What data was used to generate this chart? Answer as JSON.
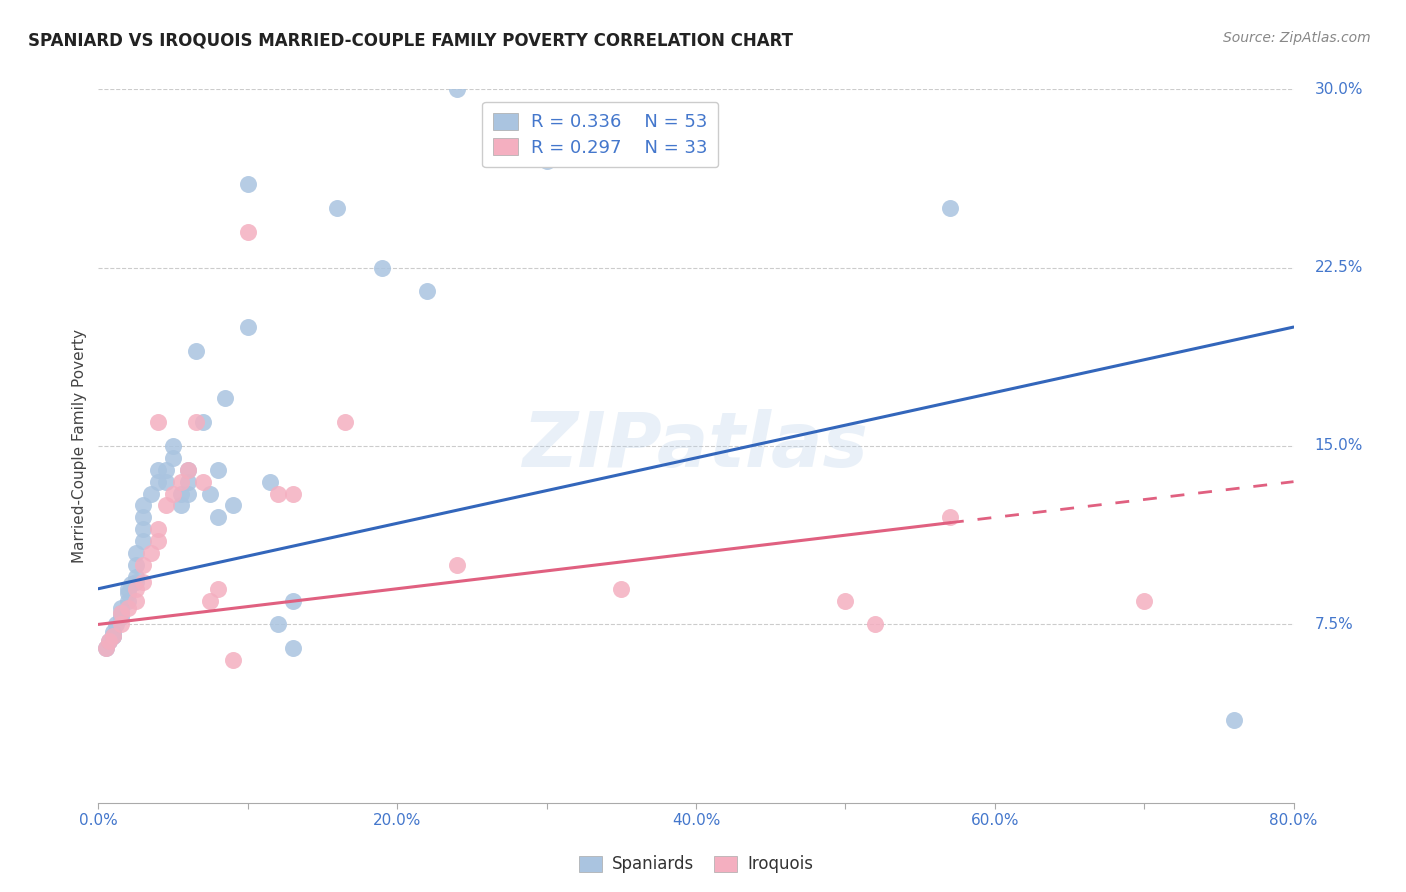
{
  "title": "SPANIARD VS IROQUOIS MARRIED-COUPLE FAMILY POVERTY CORRELATION CHART",
  "source": "Source: ZipAtlas.com",
  "ylabel_label": "Married-Couple Family Poverty",
  "xlim": [
    0.0,
    0.8
  ],
  "ylim": [
    0.0,
    0.3
  ],
  "yticks": [
    0.075,
    0.15,
    0.225,
    0.3
  ],
  "ytick_labels": [
    "7.5%",
    "15.0%",
    "22.5%",
    "30.0%"
  ],
  "xticks": [
    0.0,
    0.1,
    0.2,
    0.3,
    0.4,
    0.5,
    0.6,
    0.7,
    0.8
  ],
  "xtick_labels": [
    "0.0%",
    "",
    "20.0%",
    "",
    "40.0%",
    "",
    "60.0%",
    "",
    "80.0%"
  ],
  "watermark": "ZIPatlas",
  "spaniards_color": "#aac4e0",
  "iroquois_color": "#f4afc0",
  "trend_blue_color": "#3366bb",
  "trend_pink_color": "#e06080",
  "tick_color": "#4477cc",
  "grid_color": "#cccccc",
  "background_color": "#ffffff",
  "spaniards_x": [
    0.005,
    0.007,
    0.01,
    0.01,
    0.01,
    0.012,
    0.015,
    0.015,
    0.015,
    0.02,
    0.02,
    0.02,
    0.022,
    0.025,
    0.025,
    0.025,
    0.025,
    0.03,
    0.03,
    0.03,
    0.03,
    0.035,
    0.04,
    0.04,
    0.045,
    0.045,
    0.05,
    0.05,
    0.055,
    0.055,
    0.06,
    0.06,
    0.06,
    0.065,
    0.07,
    0.075,
    0.08,
    0.08,
    0.085,
    0.09,
    0.1,
    0.1,
    0.115,
    0.12,
    0.13,
    0.13,
    0.16,
    0.19,
    0.22,
    0.24,
    0.3,
    0.57,
    0.76
  ],
  "spaniards_y": [
    0.065,
    0.068,
    0.07,
    0.07,
    0.072,
    0.075,
    0.078,
    0.08,
    0.082,
    0.085,
    0.088,
    0.09,
    0.092,
    0.093,
    0.095,
    0.1,
    0.105,
    0.11,
    0.115,
    0.12,
    0.125,
    0.13,
    0.135,
    0.14,
    0.135,
    0.14,
    0.145,
    0.15,
    0.125,
    0.13,
    0.13,
    0.135,
    0.14,
    0.19,
    0.16,
    0.13,
    0.12,
    0.14,
    0.17,
    0.125,
    0.2,
    0.26,
    0.135,
    0.075,
    0.065,
    0.085,
    0.25,
    0.225,
    0.215,
    0.3,
    0.27,
    0.25,
    0.035
  ],
  "iroquois_x": [
    0.005,
    0.007,
    0.01,
    0.015,
    0.015,
    0.02,
    0.025,
    0.025,
    0.03,
    0.03,
    0.035,
    0.04,
    0.04,
    0.04,
    0.045,
    0.05,
    0.055,
    0.06,
    0.065,
    0.07,
    0.075,
    0.08,
    0.09,
    0.1,
    0.12,
    0.13,
    0.165,
    0.24,
    0.35,
    0.5,
    0.52,
    0.57,
    0.7
  ],
  "iroquois_y": [
    0.065,
    0.068,
    0.07,
    0.075,
    0.08,
    0.082,
    0.085,
    0.09,
    0.093,
    0.1,
    0.105,
    0.11,
    0.115,
    0.16,
    0.125,
    0.13,
    0.135,
    0.14,
    0.16,
    0.135,
    0.085,
    0.09,
    0.06,
    0.24,
    0.13,
    0.13,
    0.16,
    0.1,
    0.09,
    0.085,
    0.075,
    0.12,
    0.085
  ],
  "trend_sp_x0": 0.0,
  "trend_sp_y0": 0.09,
  "trend_sp_x1": 0.8,
  "trend_sp_y1": 0.2,
  "trend_ir_x0": 0.0,
  "trend_ir_y0": 0.075,
  "trend_ir_x1": 0.8,
  "trend_ir_y1": 0.135,
  "trend_ir_solid_end": 0.57
}
